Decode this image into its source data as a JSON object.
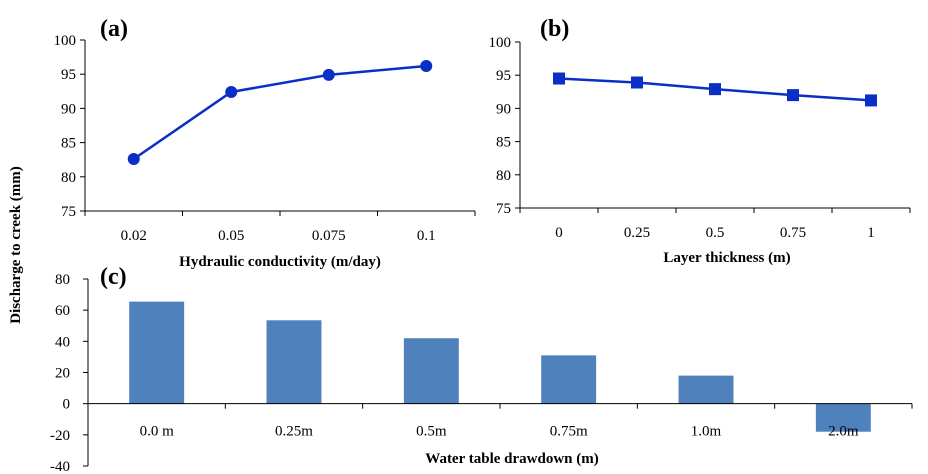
{
  "shared": {
    "ylabel": "Discharge to creek (mm)"
  },
  "chart_data": [
    {
      "panel": "(a)",
      "type": "line",
      "categories": [
        "0.02",
        "0.05",
        "0.075",
        "0.1"
      ],
      "values": [
        82.6,
        92.4,
        94.9,
        96.2
      ],
      "xlabel": "Hydraulic conductivity (m/day)",
      "ylim": [
        75,
        100
      ],
      "yticks": [
        75,
        80,
        85,
        90,
        95,
        100
      ],
      "marker": "circle",
      "color": "#0a2fc4"
    },
    {
      "panel": "(b)",
      "type": "line",
      "categories": [
        "0",
        "0.25",
        "0.5",
        "0.75",
        "1"
      ],
      "values": [
        94.5,
        93.9,
        92.9,
        92.0,
        91.2
      ],
      "xlabel": "Layer thickness (m)",
      "ylim": [
        75,
        100
      ],
      "yticks": [
        75,
        80,
        85,
        90,
        95,
        100
      ],
      "marker": "square",
      "color": "#0a2fc4"
    },
    {
      "panel": "(c)",
      "type": "bar",
      "categories": [
        "0.0 m",
        "0.25m",
        "0.5m",
        "0.75m",
        "1.0m",
        "2.0m"
      ],
      "values": [
        65.5,
        53.5,
        42.0,
        31.0,
        18.0,
        -18.0
      ],
      "xlabel": "Water table drawdown (m)",
      "ylim": [
        -40,
        80
      ],
      "yticks": [
        -40,
        -20,
        0,
        20,
        40,
        60,
        80
      ],
      "color": "#4f81bd"
    }
  ]
}
